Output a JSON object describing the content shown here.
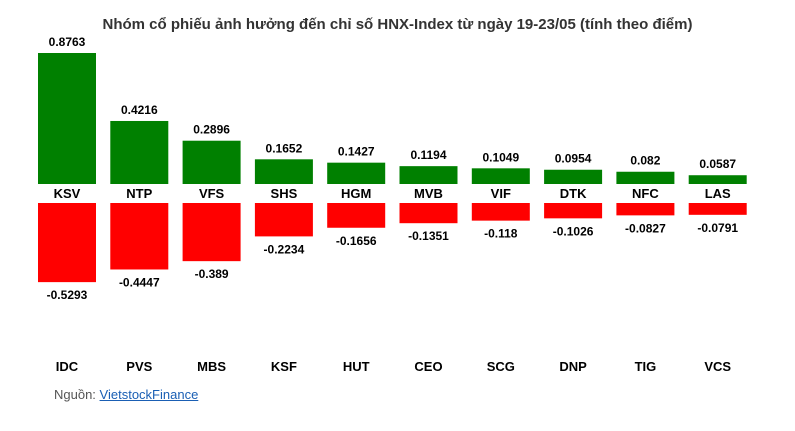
{
  "colors": {
    "positive": "#008000",
    "negative": "#ff0000"
  },
  "source": {
    "prefix": "Nguồn:",
    "link_text": "VietstockFinance"
  },
  "chart_data": {
    "type": "bar",
    "title": "Nhóm cổ phiếu ảnh hưởng đến chỉ số HNX-Index từ ngày 19-23/05 (tính theo điểm)",
    "grid": false,
    "positive": {
      "categories": [
        "KSV",
        "NTP",
        "VFS",
        "SHS",
        "HGM",
        "MVB",
        "VIF",
        "DTK",
        "NFC",
        "LAS"
      ],
      "values": [
        0.8763,
        0.4216,
        0.2896,
        0.1652,
        0.1427,
        0.1194,
        0.1049,
        0.0954,
        0.082,
        0.0587
      ],
      "labels": [
        "0.8763",
        "0.4216",
        "0.2896",
        "0.1652",
        "0.1427",
        "0.1194",
        "0.1049",
        "0.0954",
        "0.082",
        "0.0587"
      ]
    },
    "negative": {
      "categories": [
        "IDC",
        "PVS",
        "MBS",
        "KSF",
        "HUT",
        "CEO",
        "SCG",
        "DNP",
        "TIG",
        "VCS"
      ],
      "values": [
        -0.5293,
        -0.4447,
        -0.389,
        -0.2234,
        -0.1656,
        -0.1351,
        -0.118,
        -0.1026,
        -0.0827,
        -0.0791
      ],
      "labels": [
        "-0.5293",
        "-0.4447",
        "-0.389",
        "-0.2234",
        "-0.1656",
        "-0.1351",
        "-0.118",
        "-0.1026",
        "-0.0827",
        "-0.0791"
      ]
    }
  }
}
